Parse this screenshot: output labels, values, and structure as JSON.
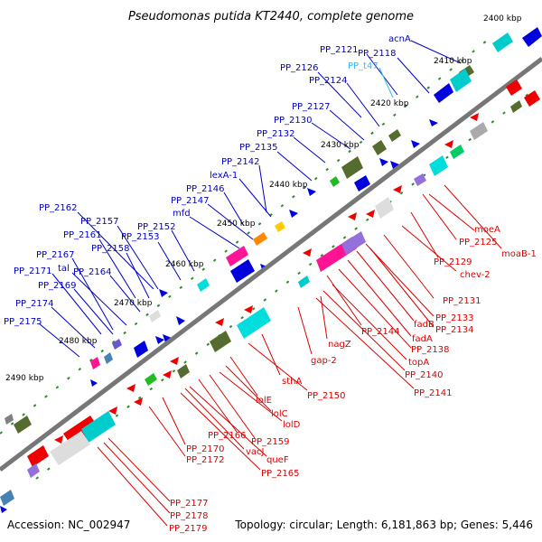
{
  "title": "Pseudomonas putida KT2440, complete genome",
  "footer": {
    "accession": "Accession: NC_002947",
    "topology": "Topology: circular; Length: 6,181,863 bp; Genes: 5,446"
  },
  "colors": {
    "top_label": "#0000cc",
    "trna_label": "#33bbee",
    "bottom_label": "#dd0000",
    "backbone": "#777777",
    "tick": "#2e8b2e",
    "fwd_gene": "#0000dd",
    "rev_gene": "#ee0000"
  },
  "ticks": [
    {
      "text": "2400 kbp"
    },
    {
      "text": "2410 kbp"
    },
    {
      "text": "2420 kbp"
    },
    {
      "text": "2430 kbp"
    },
    {
      "text": "2440 kbp"
    },
    {
      "text": "2450 kbp"
    },
    {
      "text": "2460 kbp"
    },
    {
      "text": "2470 kbp"
    },
    {
      "text": "2480 kbp"
    },
    {
      "text": "2490 kbp"
    }
  ],
  "top_labels": [
    {
      "text": "acnA"
    },
    {
      "text": "PP_2118"
    },
    {
      "text": "PP_2121"
    },
    {
      "text": "PP_t47"
    },
    {
      "text": "PP_2126"
    },
    {
      "text": "PP_2124"
    },
    {
      "text": "PP_2127"
    },
    {
      "text": "PP_2130"
    },
    {
      "text": "PP_2132"
    },
    {
      "text": "PP_2135"
    },
    {
      "text": "PP_2142"
    },
    {
      "text": "lexA-1"
    },
    {
      "text": "PP_2146"
    },
    {
      "text": "PP_2147"
    },
    {
      "text": "mfd"
    },
    {
      "text": "PP_2162"
    },
    {
      "text": "PP_2157"
    },
    {
      "text": "PP_2152"
    },
    {
      "text": "PP_2161"
    },
    {
      "text": "PP_2153"
    },
    {
      "text": "PP_2158"
    },
    {
      "text": "PP_2167"
    },
    {
      "text": "tal"
    },
    {
      "text": "PP_2171"
    },
    {
      "text": "PP_2164"
    },
    {
      "text": "PP_2169"
    },
    {
      "text": "PP_2174"
    },
    {
      "text": "PP_2175"
    }
  ],
  "bottom_labels": [
    {
      "text": "moeA"
    },
    {
      "text": "PP_2125"
    },
    {
      "text": "moaB-1"
    },
    {
      "text": "PP_2129"
    },
    {
      "text": "chev-2"
    },
    {
      "text": "PP_2131"
    },
    {
      "text": "PP_2133"
    },
    {
      "text": "fadB"
    },
    {
      "text": "PP_2134"
    },
    {
      "text": "fadA"
    },
    {
      "text": "PP_2138"
    },
    {
      "text": "PP_2144"
    },
    {
      "text": "topA"
    },
    {
      "text": "nagZ"
    },
    {
      "text": "PP_2140"
    },
    {
      "text": "gap-2"
    },
    {
      "text": "PP_2141"
    },
    {
      "text": "sthA"
    },
    {
      "text": "PP_2150"
    },
    {
      "text": "lolE"
    },
    {
      "text": "lolC"
    },
    {
      "text": "lolD"
    },
    {
      "text": "PP_2166"
    },
    {
      "text": "PP_2159"
    },
    {
      "text": "PP_2170"
    },
    {
      "text": "vacJ"
    },
    {
      "text": "queF"
    },
    {
      "text": "PP_2172"
    },
    {
      "text": "PP_2165"
    },
    {
      "text": "PP_2177"
    },
    {
      "text": "PP_2178"
    },
    {
      "text": "PP_2179"
    }
  ]
}
